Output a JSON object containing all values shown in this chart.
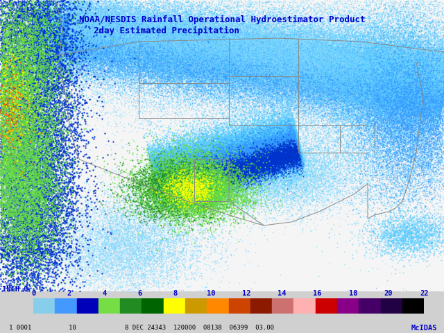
{
  "title_line1": "NOAA/NESDIS Rainfall Operational Hydroestimator Product",
  "title_line2": "2day Estimated Precipitation",
  "title_color": "#0000CC",
  "bg_color": "#d0d0d0",
  "map_bg": "#f0f0f0",
  "colorbar_ticks": [
    0,
    2,
    4,
    6,
    8,
    10,
    12,
    14,
    16,
    18,
    20,
    22
  ],
  "cb_colors": [
    "#87CEEB",
    "#4499FF",
    "#0000BB",
    "#77DD44",
    "#228B22",
    "#006400",
    "#FFFF00",
    "#CC9900",
    "#FF8800",
    "#CC4400",
    "#8B1A00",
    "#CC7070",
    "#FFB0B0",
    "#CC0000",
    "#880088",
    "#440066",
    "#220044",
    "#000000"
  ],
  "bottom_text_left": "1 0001          10",
  "bottom_text_center": "8 DEC 24343  120000  08138  06399  03.00",
  "bottom_text_right": "McIDAS",
  "inch_label": "INCH 0",
  "figsize": [
    6.4,
    4.8
  ],
  "dpi": 100
}
